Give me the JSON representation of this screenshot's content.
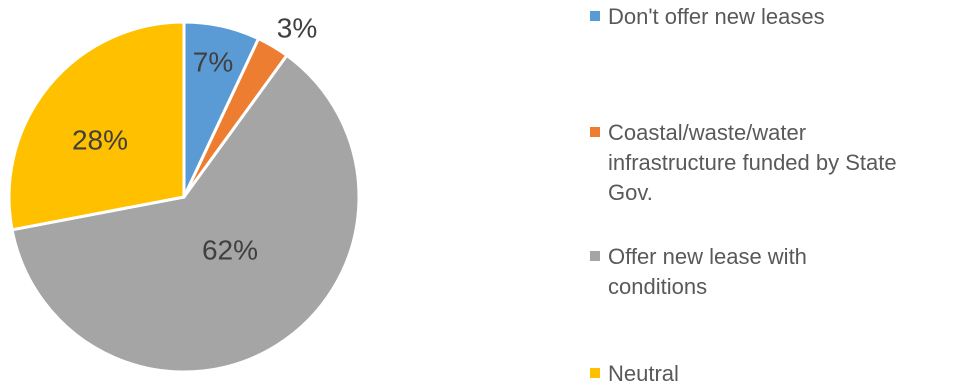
{
  "chart_data": {
    "type": "pie",
    "title": "",
    "start_angle": "12 o'clock",
    "direction": "clockwise",
    "series": [
      {
        "values": [
          7,
          3,
          62,
          28
        ],
        "labels": [
          "7%",
          "3%",
          "62%",
          "28%"
        ]
      }
    ],
    "categories": [
      "Don't offer new leases",
      "Coastal/waste/water infrastructure funded by State Gov.",
      "Offer new lease with conditions",
      "Neutral"
    ],
    "colors": [
      "#5B9BD5",
      "#ED7D31",
      "#A5A5A5",
      "#FFC000"
    ],
    "legend": {
      "position": "right",
      "entries": [
        "Don't offer new leases",
        "Coastal/waste/water\ninfrastructure funded by State\nGov.",
        "Offer new lease with\nconditions",
        "Neutral"
      ]
    }
  }
}
